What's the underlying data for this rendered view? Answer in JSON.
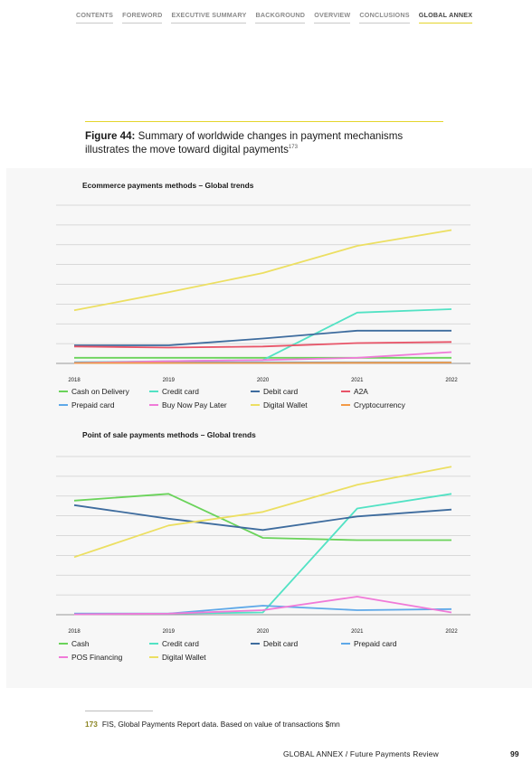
{
  "nav": {
    "items": [
      "CONTENTS",
      "FOREWORD",
      "EXECUTIVE SUMMARY",
      "BACKGROUND",
      "OVERVIEW",
      "CONCLUSIONS",
      "GLOBAL ANNEX"
    ],
    "active": "GLOBAL ANNEX"
  },
  "figure": {
    "label": "Figure 44:",
    "title": "Summary of worldwide changes in payment mechanisms illustrates the move toward digital payments",
    "ref": "173"
  },
  "colors": {
    "accent": "#e4d52c",
    "Cash on Delivery": "#6ad35a",
    "Cash": "#6ad35a",
    "Credit card": "#52e2c4",
    "Debit card": "#3e6c9e",
    "A2A": "#e85468",
    "Prepaid card": "#5ea8e8",
    "Buy Now Pay Later": "#f07ad8",
    "POS Financing": "#f07ad8",
    "Digital Wallet": "#ecdf62",
    "Cryptocurrency": "#f39a46"
  },
  "chart_data": [
    {
      "type": "line",
      "title": "Ecommerce payments methods – Global trends",
      "x": [
        "2018",
        "2019",
        "2020",
        "2021",
        "2022"
      ],
      "ylim": [
        0,
        7
      ],
      "grid": true,
      "legend_position": "bottom",
      "series": [
        {
          "name": "Cash on Delivery",
          "values": [
            0.25,
            0.25,
            0.25,
            0.25,
            0.25
          ]
        },
        {
          "name": "Credit card",
          "values": [
            0.05,
            0.1,
            0.15,
            2.25,
            2.4
          ]
        },
        {
          "name": "Debit card",
          "values": [
            0.8,
            0.8,
            1.1,
            1.45,
            1.45
          ]
        },
        {
          "name": "A2A",
          "values": [
            0.75,
            0.7,
            0.75,
            0.9,
            0.95
          ]
        },
        {
          "name": "Prepaid card",
          "values": [
            0.05,
            0.05,
            0.05,
            0.05,
            0.05
          ]
        },
        {
          "name": "Buy Now Pay Later",
          "values": [
            0.02,
            0.1,
            0.15,
            0.25,
            0.5
          ]
        },
        {
          "name": "Digital Wallet",
          "values": [
            2.35,
            3.15,
            4.0,
            5.2,
            5.9
          ]
        },
        {
          "name": "Cryptocurrency",
          "values": [
            0.02,
            0.02,
            0.02,
            0.03,
            0.04
          ]
        }
      ]
    },
    {
      "type": "line",
      "title": "Point of sale payments methods – Global trends",
      "x": [
        "2018",
        "2019",
        "2020",
        "2021",
        "2022"
      ],
      "ylim": [
        0,
        7
      ],
      "grid": true,
      "legend_position": "bottom",
      "series": [
        {
          "name": "Cash",
          "values": [
            5.05,
            5.35,
            3.4,
            3.3,
            3.3
          ]
        },
        {
          "name": "Credit card",
          "values": [
            0.05,
            0.05,
            0.1,
            4.7,
            5.35
          ]
        },
        {
          "name": "Debit card",
          "values": [
            4.85,
            4.25,
            3.75,
            4.35,
            4.65
          ]
        },
        {
          "name": "Prepaid card",
          "values": [
            0.05,
            0.05,
            0.4,
            0.2,
            0.25
          ]
        },
        {
          "name": "POS Financing",
          "values": [
            0.02,
            0.05,
            0.2,
            0.8,
            0.1
          ]
        },
        {
          "name": "Digital Wallet",
          "values": [
            2.55,
            3.95,
            4.55,
            5.75,
            6.55
          ]
        }
      ]
    }
  ],
  "footnote": {
    "number": "173",
    "text": "FIS, Global Payments Report data. Based on value of transactions $mn"
  },
  "footer": {
    "text": "GLOBAL ANNEX / Future Payments Review",
    "page": "99"
  }
}
